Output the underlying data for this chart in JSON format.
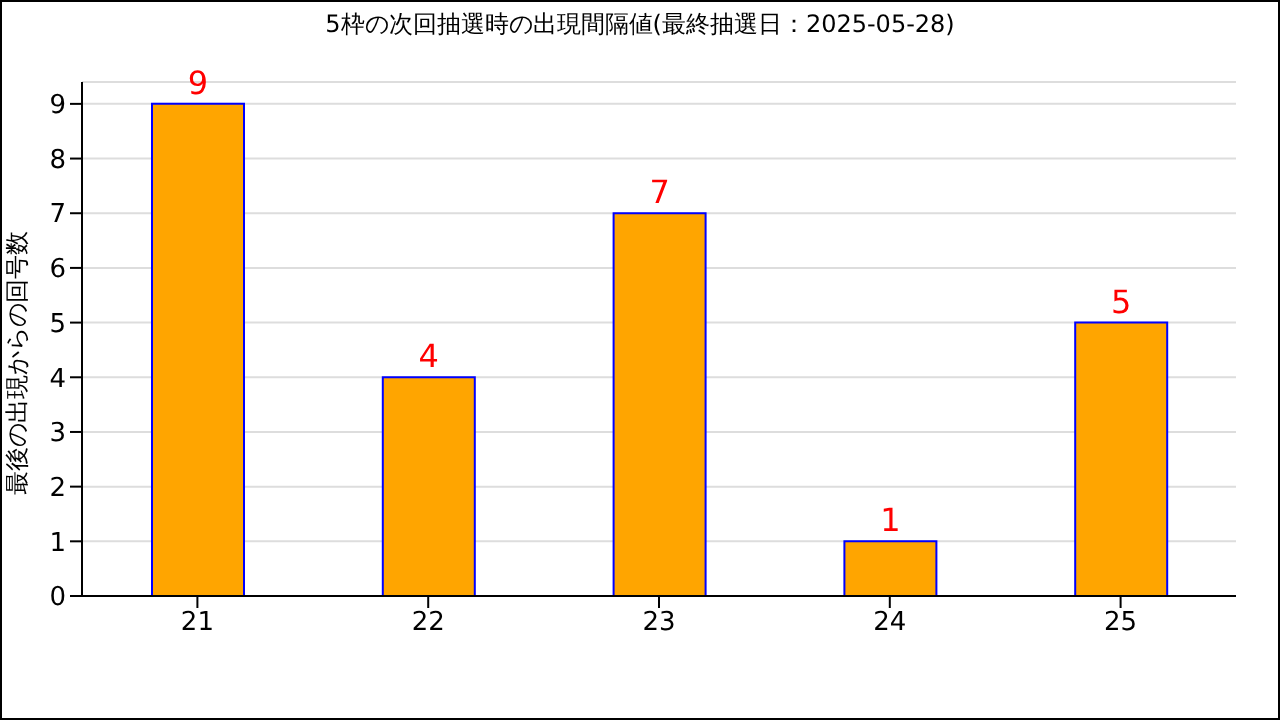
{
  "chart_data": {
    "type": "bar",
    "title": "5枠の次回抽選時の出現間隔値(最終抽選日：2025-05-28)",
    "ylabel": "最後の出現からの回号数",
    "categories": [
      "21",
      "22",
      "23",
      "24",
      "25"
    ],
    "series": [
      {
        "color": "#ffa500",
        "values": [
          9,
          4,
          7,
          1,
          5
        ]
      }
    ],
    "ylim": [
      0,
      9.4
    ],
    "yticks": [
      0,
      1,
      2,
      3,
      4,
      5,
      6,
      7,
      8,
      9
    ],
    "grid": "y",
    "data_labels": true,
    "legend": false
  }
}
